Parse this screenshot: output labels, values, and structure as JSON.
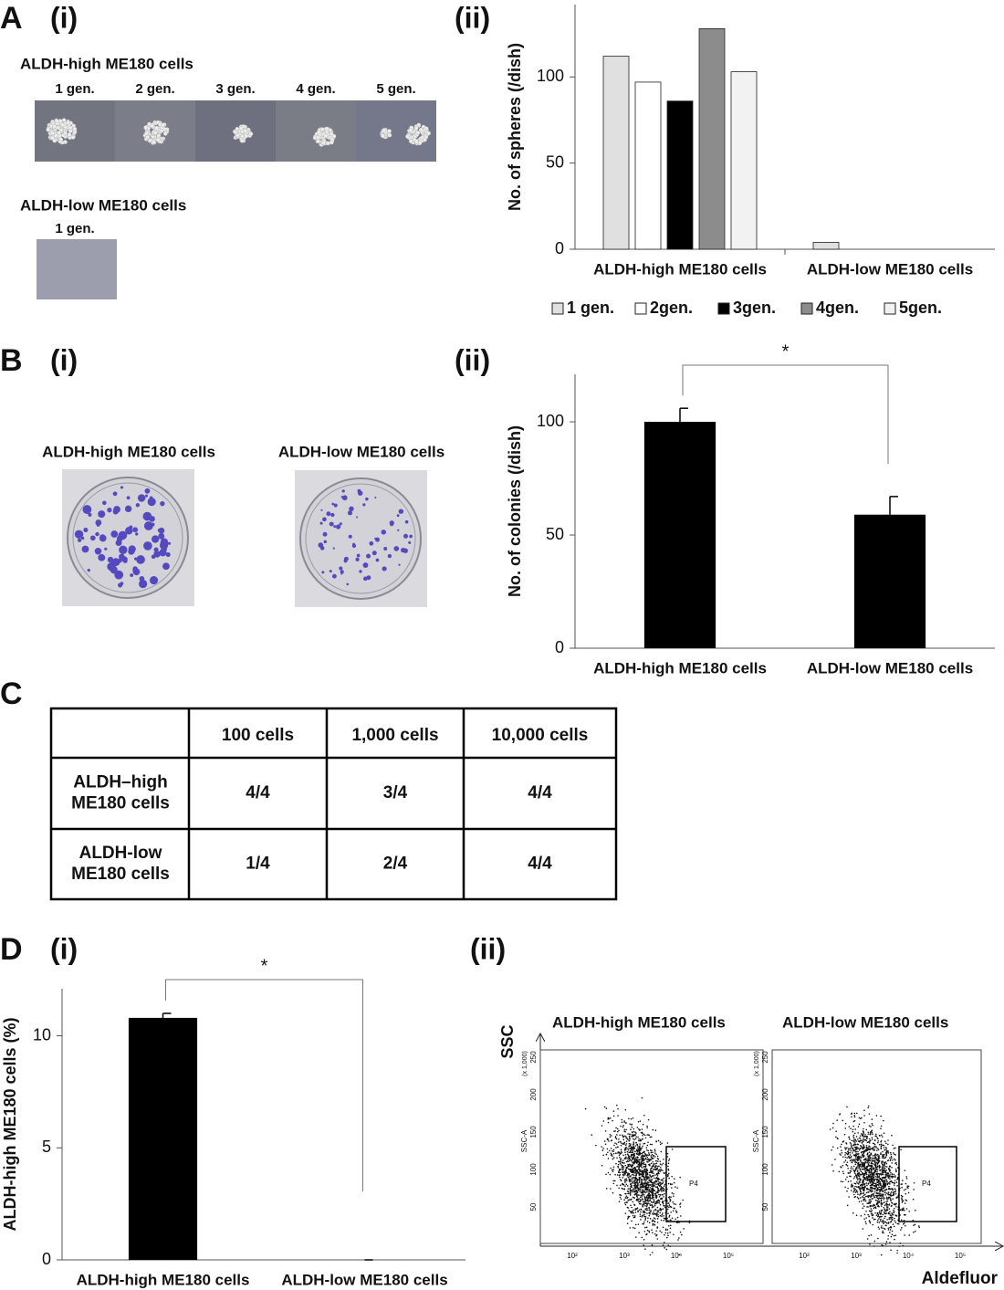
{
  "panels": [
    {
      "label": "A",
      "parts": [
        "(i)",
        "(ii)"
      ]
    },
    {
      "label": "B",
      "parts": [
        "(i)",
        "(ii)"
      ]
    },
    {
      "label": "C"
    },
    {
      "label": "D",
      "parts": [
        "(i)",
        "(ii)"
      ]
    }
  ],
  "spheres_images": {
    "high": {
      "title": "ALDH-high ME180 cells",
      "generations": [
        "1 gen.",
        "2 gen.",
        "3 gen.",
        "4 gen.",
        "5 gen."
      ]
    },
    "low": {
      "title": "ALDH-low ME180 cells",
      "generations": [
        "1 gen."
      ]
    }
  },
  "colony_images": {
    "titles": [
      "ALDH-high ME180 cells",
      "ALDH-low ME180 cells"
    ]
  },
  "chart_data": [
    {
      "type": "bar",
      "y_label": "No. of spheres (/dish)",
      "categories": [
        "ALDH-high ME180 cells",
        "ALDH-low ME180 cells"
      ],
      "series": [
        {
          "name": "1 gen.",
          "color": "#e0e0e0",
          "values": [
            112,
            4
          ]
        },
        {
          "name": "2gen.",
          "color": "#ffffff",
          "values": [
            97,
            0
          ]
        },
        {
          "name": "3gen.",
          "color": "#000000",
          "values": [
            86,
            0
          ]
        },
        {
          "name": "4gen.",
          "color": "#8c8c8c",
          "values": [
            128,
            0
          ]
        },
        {
          "name": "5gen.",
          "color": "#f2f2f2",
          "values": [
            103,
            0
          ]
        }
      ],
      "ylim": [
        0,
        142
      ],
      "yticks": [
        0,
        50,
        100
      ],
      "legend": "bottom"
    },
    {
      "type": "bar",
      "y_label": "No. of colonies (/dish)",
      "categories": [
        "ALDH-high ME180 cells",
        "ALDH-low ME180 cells"
      ],
      "values": [
        100,
        59
      ],
      "errors": [
        6,
        8
      ],
      "color": "#000000",
      "ylim": [
        0,
        121
      ],
      "yticks": [
        0,
        50,
        100
      ],
      "annotation": "*"
    },
    {
      "type": "bar",
      "y_label": "ALDH-high ME180 cells (%)",
      "categories": [
        "ALDH-high ME180 cells",
        "ALDH-low ME180 cells"
      ],
      "values": [
        10.8,
        0
      ],
      "errors": [
        0.2,
        0
      ],
      "color": "#000000",
      "ylim": [
        0,
        12.1
      ],
      "yticks": [
        0,
        5,
        10
      ],
      "annotation": "*"
    }
  ],
  "table": {
    "columns": [
      "100 cells",
      "1,000 cells",
      "10,000 cells"
    ],
    "rows": [
      {
        "label": "ALDH–high\nME180 cells",
        "cells": [
          "4/4",
          "3/4",
          "4/4"
        ]
      },
      {
        "label": "ALDH-low\nME180 cells",
        "cells": [
          "1/4",
          "2/4",
          "4/4"
        ]
      }
    ]
  },
  "flow": {
    "y_axis": "SSC",
    "x_axis": "Aldefluor",
    "y_unit": "(x 1,000)",
    "y_name": "SSC-A",
    "yticks": [
      "250",
      "200",
      "150",
      "100",
      "50"
    ],
    "xticks": [
      "10²",
      "10³",
      "10⁴",
      "10⁵"
    ],
    "plots": [
      {
        "title": "ALDH-high ME180 cells",
        "gate": "P4"
      },
      {
        "title": "ALDH-low ME180 cells",
        "gate": "P4"
      }
    ]
  }
}
